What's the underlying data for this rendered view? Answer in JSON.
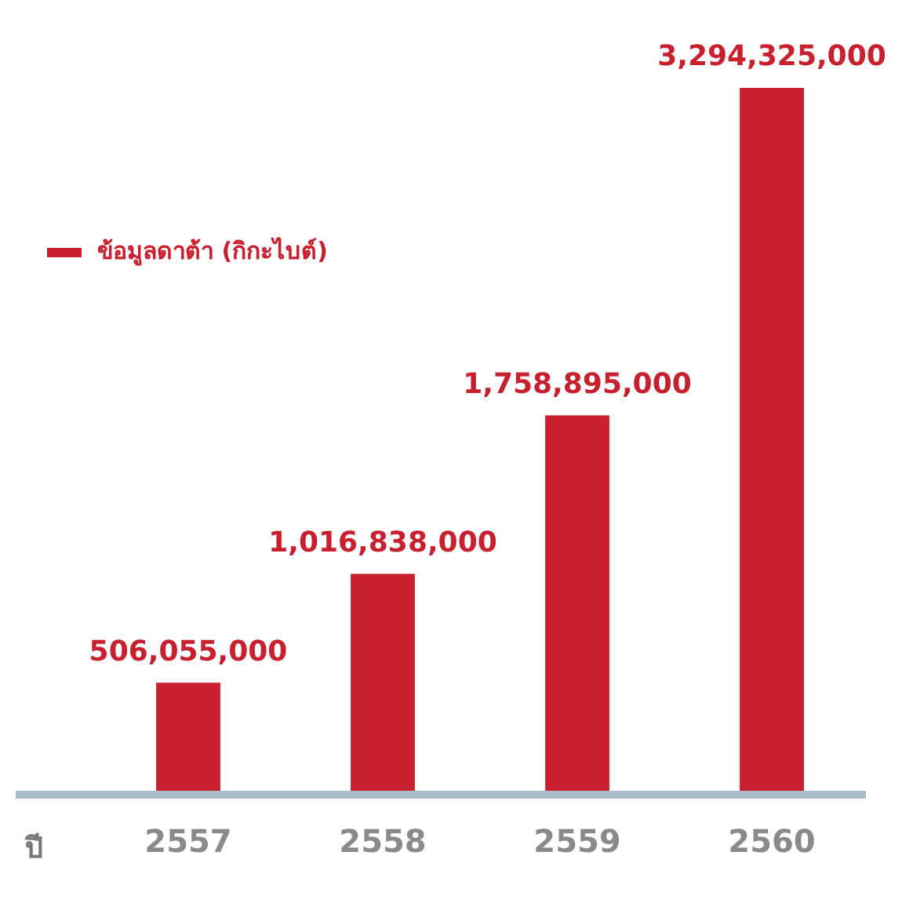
{
  "chart_data": {
    "type": "bar",
    "xlabel": "ปี",
    "categories": [
      "2557",
      "2558",
      "2559",
      "2560"
    ],
    "series": [
      {
        "name": "ข้อมูลดาต้า (กิกะไบต์)",
        "color": "#c8202f",
        "values": [
          506055000,
          1016838000,
          1758895000,
          3294325000
        ],
        "value_labels": [
          "506,055,000",
          "1,016,838,000",
          "1,758,895,000",
          "3,294,325,000"
        ]
      }
    ],
    "tick_labels": "x",
    "legend": "top left",
    "grid": false
  }
}
